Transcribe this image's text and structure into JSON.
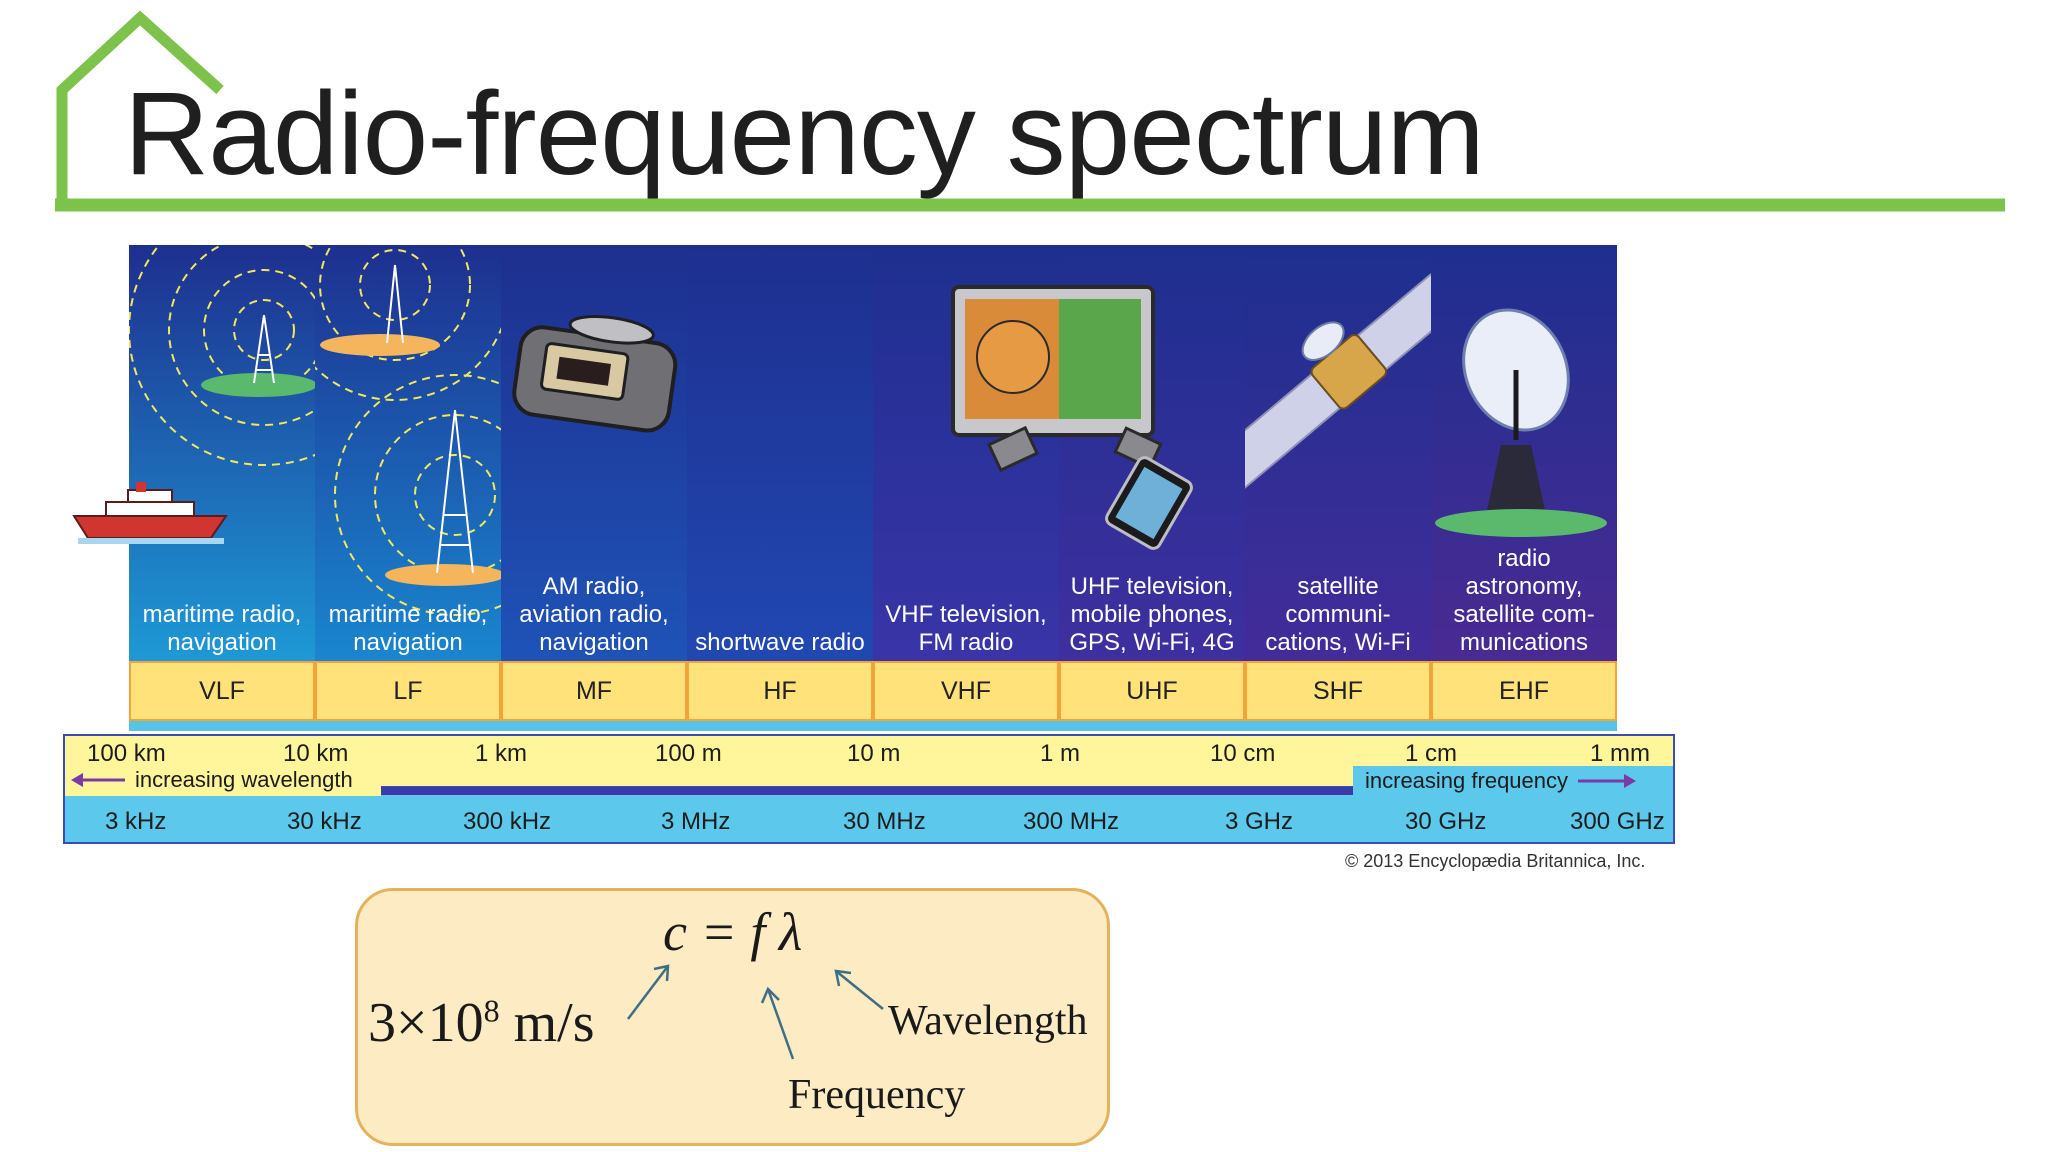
{
  "title": "Radio-frequency spectrum",
  "bands": [
    {
      "code": "VLF",
      "label": "maritime radio,\nnavigation",
      "color": "#1e99d6"
    },
    {
      "code": "LF",
      "label": "maritime radio,\nnavigation",
      "color": "#1a86cf"
    },
    {
      "code": "MF",
      "label": "AM radio,\naviation radio,\nnavigation",
      "color": "#1f53b7"
    },
    {
      "code": "HF",
      "label": "shortwave radio",
      "color": "#2148b2"
    },
    {
      "code": "VHF",
      "label": "VHF television,\nFM radio",
      "color": "#3a34a8"
    },
    {
      "code": "UHF",
      "label": "UHF television,\nmobile phones,\nGPS, Wi-Fi, 4G",
      "color": "#3f2f9f"
    },
    {
      "code": "SHF",
      "label": "satellite\ncommuni-\ncations, Wi-Fi",
      "color": "#432c9a"
    },
    {
      "code": "EHF",
      "label": "radio\nastronomy,\nsatellite com-\nmunications",
      "color": "#4a2a93"
    }
  ],
  "wavelength_ticks": [
    "100 km",
    "10 km",
    "1 km",
    "100 m",
    "10 m",
    "1 m",
    "10 cm",
    "1 cm",
    "1 mm"
  ],
  "frequency_ticks": [
    "3 kHz",
    "30 kHz",
    "300 kHz",
    "3 MHz",
    "30 MHz",
    "300 MHz",
    "3 GHz",
    "30 GHz",
    "300 GHz"
  ],
  "increasing_wavelength": "increasing wavelength",
  "increasing_frequency": "increasing frequency",
  "copyright": "© 2013 Encyclopædia Britannica, Inc.",
  "formula": {
    "equation": "c = f λ",
    "speed_base": "3×10",
    "speed_exp": "8",
    "speed_unit": " m/s",
    "frequency": "Frequency",
    "wavelength": "Wavelength"
  },
  "colors": {
    "accent_green": "#7dc24b",
    "code_fill": "#ffe27a",
    "wavelength_row": "#fff59a",
    "frequency_row": "#5cc8ec",
    "formula_fill": "#fdebc4"
  },
  "icons": [
    "ship-icon",
    "radio-tower-icon",
    "alarm-clock-radio-icon",
    "television-icon",
    "smartphone-icon",
    "satellite-icon",
    "radio-telescope-icon"
  ]
}
